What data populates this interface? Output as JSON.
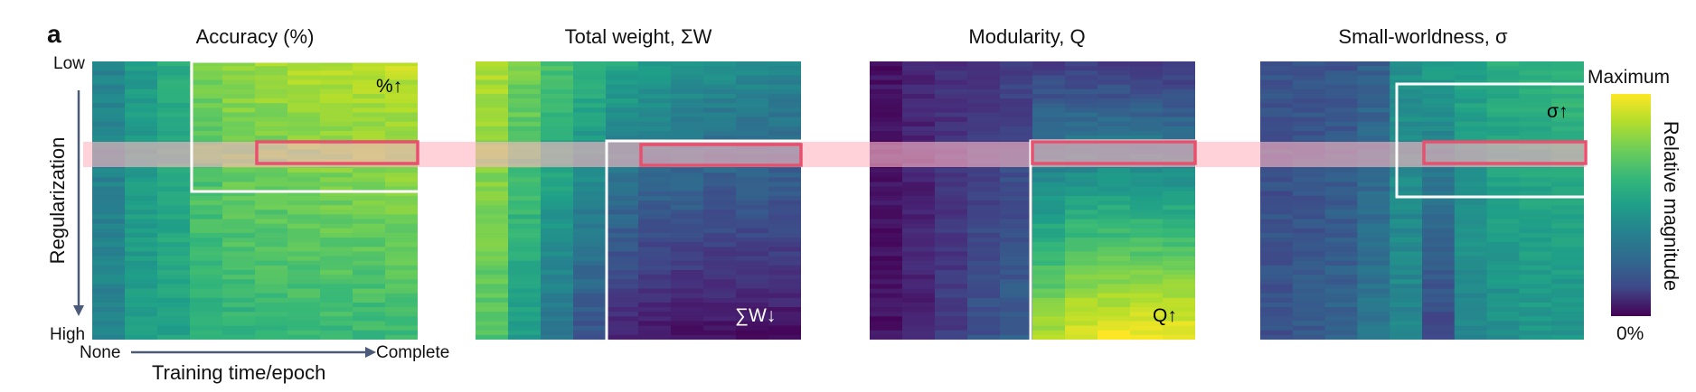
{
  "panel_letter": "a",
  "labels": {
    "y_top": "Low",
    "y_bottom": "High",
    "y_axis": "Regularization",
    "x_left": "None",
    "x_right": "Complete",
    "x_axis": "Training time/epoch"
  },
  "colorbar": {
    "top_label": "Maximum",
    "bottom_label": "0%",
    "side_label": "Relative magnitude",
    "colormap": "viridis"
  },
  "colors": {
    "highlight_band": "#ffb6c4",
    "highlight_box": "#e8506e",
    "region_border": "#ffffff",
    "axis_arrow": "#4a5a78"
  },
  "chart_data": [
    {
      "type": "heatmap",
      "title": "Accuracy (%)",
      "xlabel": "Training time/epoch",
      "ylabel": "Regularization",
      "annotation": "%↑",
      "colormap": "viridis",
      "columns": 10,
      "rows": 60,
      "column_values_low_reg": [
        0.45,
        0.55,
        0.62,
        0.8,
        0.84,
        0.86,
        0.88,
        0.89,
        0.9,
        0.91
      ],
      "column_values_high_reg": [
        0.45,
        0.55,
        0.58,
        0.62,
        0.64,
        0.65,
        0.66,
        0.67,
        0.67,
        0.68
      ]
    },
    {
      "type": "heatmap",
      "title": "Total weight, ΣW",
      "xlabel": "Training time/epoch",
      "ylabel": "Regularization",
      "annotation": "∑W↓",
      "colormap": "viridis",
      "columns": 10,
      "rows": 60,
      "column_values_low_reg": [
        0.88,
        0.8,
        0.72,
        0.65,
        0.6,
        0.56,
        0.53,
        0.5,
        0.49,
        0.48
      ],
      "column_values_high_reg": [
        0.72,
        0.55,
        0.38,
        0.25,
        0.1,
        0.06,
        0.05,
        0.04,
        0.04,
        0.04
      ]
    },
    {
      "type": "heatmap",
      "title": "Modularity, Q",
      "xlabel": "Training time/epoch",
      "ylabel": "Regularization",
      "annotation": "Q↑",
      "colormap": "viridis",
      "columns": 10,
      "rows": 60,
      "column_values_low_reg": [
        0.05,
        0.1,
        0.13,
        0.16,
        0.18,
        0.18,
        0.18,
        0.17,
        0.17,
        0.16
      ],
      "column_values_high_reg": [
        0.05,
        0.1,
        0.18,
        0.25,
        0.3,
        0.88,
        0.97,
        0.99,
        0.99,
        0.99
      ]
    },
    {
      "type": "heatmap",
      "title": "Small-worldness, σ",
      "xlabel": "Training time/epoch",
      "ylabel": "Regularization",
      "annotation": "σ↑",
      "colormap": "viridis",
      "columns": 10,
      "rows": 60,
      "column_values_low_reg": [
        0.25,
        0.25,
        0.26,
        0.3,
        0.5,
        0.55,
        0.58,
        0.62,
        0.64,
        0.66
      ],
      "column_values_high_reg": [
        0.25,
        0.28,
        0.32,
        0.4,
        0.46,
        0.2,
        0.46,
        0.5,
        0.52,
        0.52
      ]
    }
  ]
}
